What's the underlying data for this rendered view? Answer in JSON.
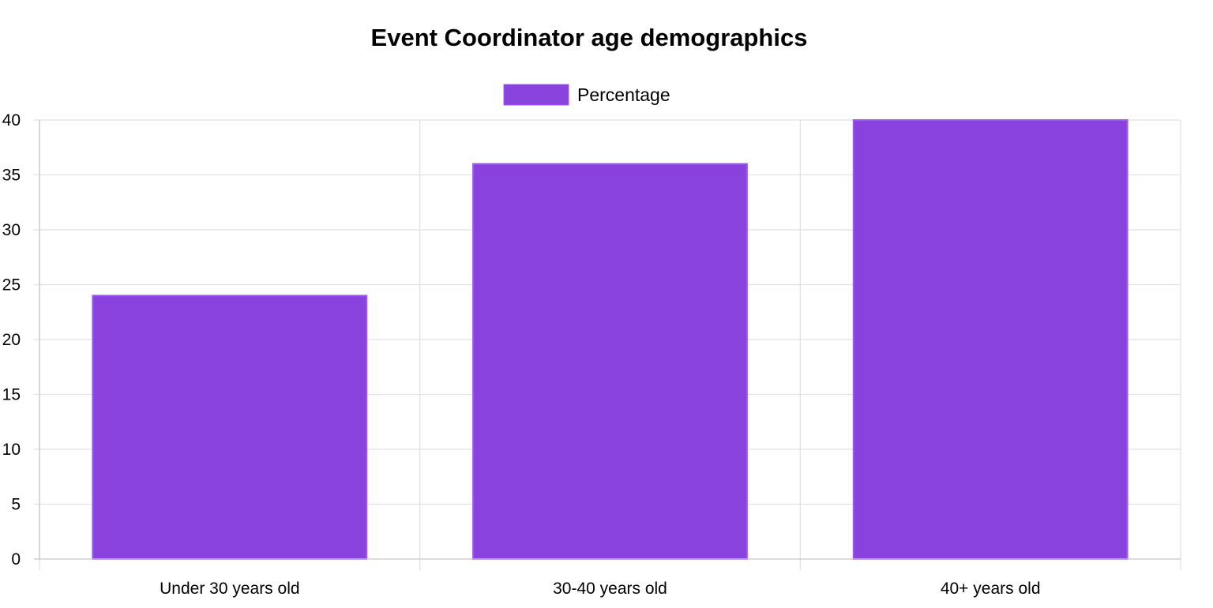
{
  "chart_data": {
    "type": "bar",
    "title": "Event Coordinator age demographics",
    "categories": [
      "Under 30 years old",
      "30-40 years old",
      "40+ years old"
    ],
    "series": [
      {
        "name": "Percentage",
        "values": [
          24,
          36,
          40
        ],
        "color": "#8942dd",
        "border_color": "#9b59f0"
      }
    ],
    "xlabel": "",
    "ylabel": "",
    "ylim": [
      0,
      40
    ],
    "y_ticks": [
      0,
      5,
      10,
      15,
      20,
      25,
      30,
      35,
      40
    ],
    "grid": true,
    "legend_position": "top"
  }
}
